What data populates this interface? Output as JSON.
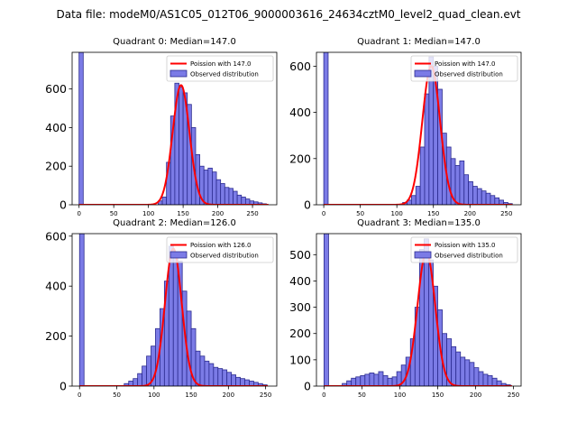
{
  "figure_title": "Data file: modeM0/AS1C05_012T06_9000003616_24634cztM0_level2_quad_clean.evt",
  "colors": {
    "hist_fill": "#7b7be6",
    "hist_edge": "#2b2b8f",
    "poisson_line": "#ff0000"
  },
  "chart_data": [
    {
      "type": "histogram",
      "title": "Quadrant 0: Median=147.0",
      "legend": [
        "Poission with 147.0",
        "Observed distribution"
      ],
      "legend_position": "top-right",
      "xlim": [
        -10,
        285
      ],
      "ylim": [
        0,
        790
      ],
      "xticks": [
        0,
        50,
        100,
        150,
        200,
        250
      ],
      "yticks": [
        0,
        200,
        400,
        600
      ],
      "poisson_mean": 147,
      "poisson_peak": 620,
      "bin_width": 6,
      "bin_starts": [
        0,
        114,
        120,
        126,
        132,
        138,
        144,
        150,
        156,
        162,
        168,
        174,
        180,
        186,
        192,
        198,
        204,
        210,
        216,
        222,
        228,
        234,
        240,
        246,
        252,
        258,
        264
      ],
      "counts": [
        790,
        20,
        40,
        220,
        460,
        630,
        610,
        580,
        520,
        400,
        260,
        200,
        180,
        190,
        170,
        130,
        110,
        90,
        85,
        70,
        50,
        40,
        30,
        20,
        15,
        10,
        5
      ]
    },
    {
      "type": "histogram",
      "title": "Quadrant 1: Median=147.0",
      "legend": [
        "Poission with 147.0",
        "Observed distribution"
      ],
      "legend_position": "top-right",
      "xlim": [
        -10,
        270
      ],
      "ylim": [
        0,
        660
      ],
      "xticks": [
        0,
        50,
        100,
        150,
        200,
        250
      ],
      "yticks": [
        0,
        200,
        400,
        600
      ],
      "poisson_mean": 147,
      "poisson_peak": 600,
      "bin_width": 6,
      "bin_starts": [
        0,
        108,
        114,
        120,
        126,
        132,
        138,
        144,
        150,
        156,
        162,
        168,
        174,
        180,
        186,
        192,
        198,
        204,
        210,
        216,
        222,
        228,
        234,
        240,
        246,
        252
      ],
      "counts": [
        660,
        10,
        20,
        40,
        80,
        250,
        480,
        640,
        600,
        500,
        310,
        250,
        200,
        170,
        190,
        130,
        100,
        80,
        70,
        60,
        50,
        40,
        30,
        20,
        10,
        5
      ]
    },
    {
      "type": "histogram",
      "title": "Quadrant 2: Median=126.0",
      "legend": [
        "Poission with 126.0",
        "Observed distribution"
      ],
      "legend_position": "top-right",
      "xlim": [
        -10,
        265
      ],
      "ylim": [
        0,
        610
      ],
      "xticks": [
        0,
        50,
        100,
        150,
        200,
        250
      ],
      "yticks": [
        0,
        200,
        400,
        600
      ],
      "poisson_mean": 126,
      "poisson_peak": 550,
      "bin_width": 6,
      "bin_starts": [
        0,
        60,
        66,
        72,
        78,
        84,
        90,
        96,
        102,
        108,
        114,
        120,
        126,
        132,
        138,
        144,
        150,
        156,
        162,
        168,
        174,
        180,
        186,
        192,
        198,
        204,
        210,
        216,
        222,
        228,
        234,
        240,
        246
      ],
      "counts": [
        610,
        10,
        20,
        30,
        50,
        80,
        120,
        160,
        230,
        310,
        420,
        560,
        530,
        500,
        380,
        300,
        230,
        140,
        120,
        100,
        90,
        75,
        70,
        65,
        55,
        45,
        35,
        30,
        25,
        20,
        15,
        10,
        5
      ]
    },
    {
      "type": "histogram",
      "title": "Quadrant 3: Median=135.0",
      "legend": [
        "Poission with 135.0",
        "Observed distribution"
      ],
      "legend_position": "top-right",
      "xlim": [
        -10,
        260
      ],
      "ylim": [
        0,
        580
      ],
      "xticks": [
        0,
        50,
        100,
        150,
        200,
        250
      ],
      "yticks": [
        0,
        100,
        200,
        300,
        400,
        500
      ],
      "poisson_mean": 135,
      "poisson_peak": 510,
      "bin_width": 6,
      "bin_starts": [
        0,
        24,
        30,
        36,
        42,
        48,
        54,
        60,
        66,
        72,
        78,
        84,
        90,
        96,
        102,
        108,
        114,
        120,
        126,
        132,
        138,
        144,
        150,
        156,
        162,
        168,
        174,
        180,
        186,
        192,
        198,
        204,
        210,
        216,
        222,
        228,
        234,
        240
      ],
      "counts": [
        580,
        10,
        20,
        30,
        35,
        40,
        45,
        50,
        45,
        55,
        40,
        30,
        35,
        55,
        80,
        110,
        180,
        300,
        520,
        560,
        480,
        380,
        290,
        200,
        180,
        150,
        130,
        110,
        100,
        90,
        70,
        55,
        45,
        40,
        30,
        20,
        10,
        5
      ]
    }
  ]
}
